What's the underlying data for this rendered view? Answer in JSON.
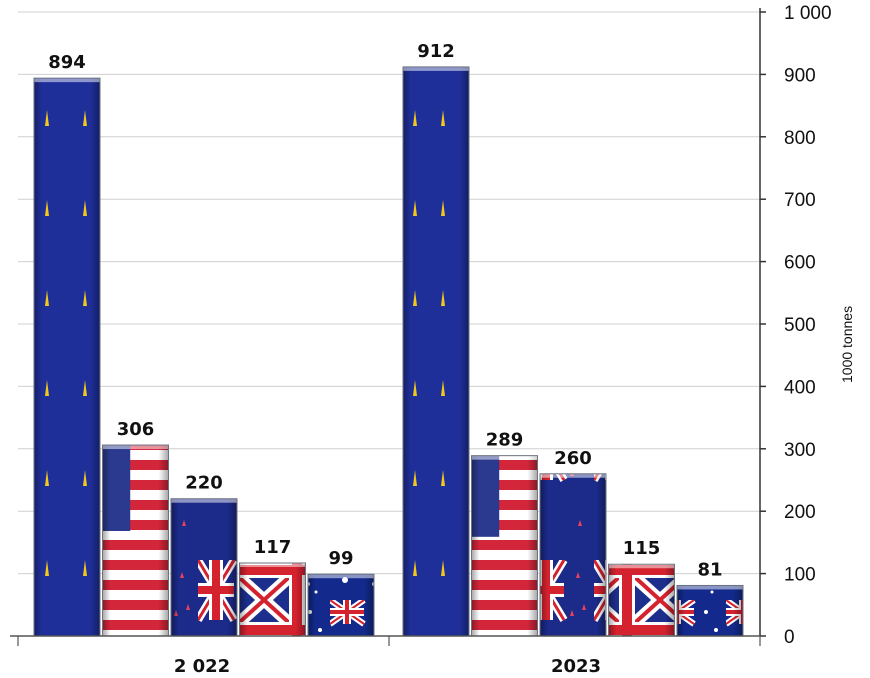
{
  "chart_data": {
    "type": "bar",
    "categories": [
      "2 022",
      "2023"
    ],
    "series": [
      {
        "flag": "eu-flag",
        "values": [
          894,
          912
        ]
      },
      {
        "flag": "us-flag",
        "values": [
          306,
          289
        ]
      },
      {
        "flag": "nz-flag",
        "values": [
          220,
          260
        ]
      },
      {
        "flag": "uk-flag",
        "values": [
          117,
          115
        ]
      },
      {
        "flag": "au-flag",
        "values": [
          99,
          81
        ]
      }
    ],
    "data_labels": [
      [
        "894",
        "306",
        "220",
        "117",
        "99"
      ],
      [
        "912",
        "289",
        "260",
        "115",
        "81"
      ]
    ],
    "ylabel": "1000 tonnes",
    "ylim": [
      0,
      1000
    ],
    "yticks": [
      0,
      100,
      200,
      300,
      400,
      500,
      600,
      700,
      800,
      900,
      1000
    ],
    "ytick_labels": [
      "0",
      "100",
      "200",
      "300",
      "400",
      "500",
      "600",
      "700",
      "800",
      "900",
      "1 000"
    ],
    "y_axis_side": "right",
    "grid": true,
    "colors": {
      "eu_blue": "#1f2f9a",
      "star_gold": "#f2c81b",
      "us_red": "#d3263a",
      "us_blue": "#2b3a8f",
      "uk_red": "#d5222f",
      "nz_blue": "#1c2a8a",
      "au_blue": "#132a8c",
      "grid": "#d0d0d0"
    }
  }
}
